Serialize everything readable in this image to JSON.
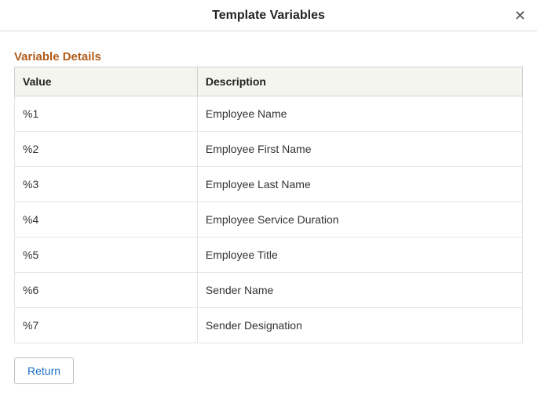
{
  "colors": {
    "section_title": "#b05c1a",
    "header_text": "#222222",
    "body_text": "#333333",
    "close_icon": "#555555",
    "grid_border_outer": "#b8b8b8",
    "grid_border_header": "#cfcfcf",
    "grid_border_cell": "#e3e3e3",
    "grid_header_bg": "#f5f5f0",
    "button_text": "#1a6fc4",
    "button_border": "#bfbfbf",
    "background": "#ffffff"
  },
  "header": {
    "title": "Template Variables",
    "close_glyph": "✕"
  },
  "section": {
    "title": "Variable Details"
  },
  "table": {
    "columns": [
      "Value",
      "Description"
    ],
    "rows": [
      [
        "%1",
        "Employee Name"
      ],
      [
        "%2",
        "Employee First Name"
      ],
      [
        "%3",
        "Employee Last Name"
      ],
      [
        "%4",
        "Employee Service Duration"
      ],
      [
        "%5",
        "Employee Title"
      ],
      [
        "%6",
        "Sender Name"
      ],
      [
        "%7",
        "Sender Designation"
      ]
    ]
  },
  "buttons": {
    "return": "Return"
  }
}
